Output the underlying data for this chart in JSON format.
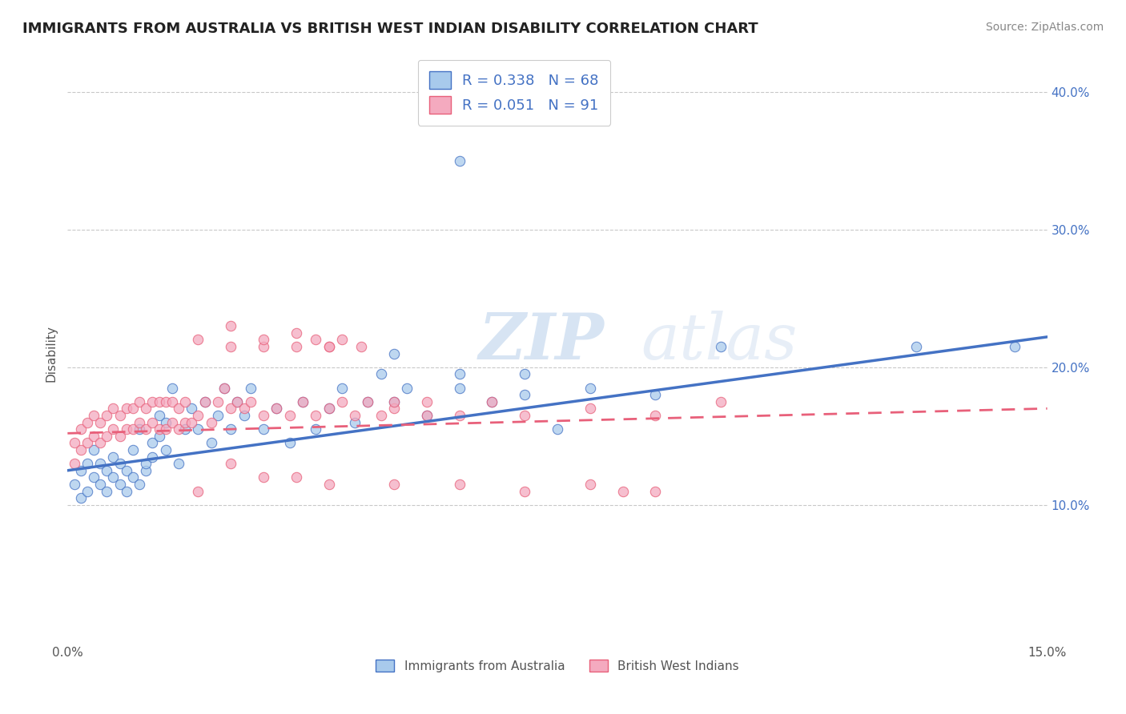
{
  "title": "IMMIGRANTS FROM AUSTRALIA VS BRITISH WEST INDIAN DISABILITY CORRELATION CHART",
  "source": "Source: ZipAtlas.com",
  "xlabel": "",
  "ylabel": "Disability",
  "xlim": [
    0.0,
    0.15
  ],
  "ylim": [
    0.0,
    0.42
  ],
  "xticks": [
    0.0,
    0.03,
    0.06,
    0.09,
    0.12,
    0.15
  ],
  "xticklabels": [
    "0.0%",
    "",
    "",
    "",
    "",
    "15.0%"
  ],
  "yticks": [
    0.1,
    0.2,
    0.3,
    0.4
  ],
  "yticklabels": [
    "10.0%",
    "20.0%",
    "30.0%",
    "40.0%"
  ],
  "blue_R": 0.338,
  "blue_N": 68,
  "pink_R": 0.051,
  "pink_N": 91,
  "blue_color": "#A8CAEC",
  "pink_color": "#F4AABF",
  "blue_line_color": "#4472C4",
  "pink_line_color": "#E8607A",
  "watermark": "ZIPatlas",
  "legend_label_blue": "Immigrants from Australia",
  "legend_label_pink": "British West Indians",
  "blue_line_x0": 0.0,
  "blue_line_y0": 0.125,
  "blue_line_x1": 0.15,
  "blue_line_y1": 0.222,
  "pink_line_x0": 0.0,
  "pink_line_y0": 0.152,
  "pink_line_x1": 0.15,
  "pink_line_y1": 0.17,
  "blue_scatter_x": [
    0.001,
    0.002,
    0.002,
    0.003,
    0.003,
    0.004,
    0.004,
    0.005,
    0.005,
    0.006,
    0.006,
    0.007,
    0.007,
    0.008,
    0.008,
    0.009,
    0.009,
    0.01,
    0.01,
    0.011,
    0.011,
    0.012,
    0.012,
    0.013,
    0.013,
    0.014,
    0.014,
    0.015,
    0.015,
    0.016,
    0.017,
    0.018,
    0.019,
    0.02,
    0.021,
    0.022,
    0.023,
    0.024,
    0.025,
    0.026,
    0.027,
    0.028,
    0.03,
    0.032,
    0.034,
    0.036,
    0.038,
    0.04,
    0.042,
    0.044,
    0.046,
    0.048,
    0.05,
    0.052,
    0.055,
    0.06,
    0.065,
    0.07,
    0.075,
    0.05,
    0.06,
    0.07,
    0.08,
    0.09,
    0.1,
    0.13,
    0.145,
    0.06
  ],
  "blue_scatter_y": [
    0.115,
    0.125,
    0.105,
    0.13,
    0.11,
    0.12,
    0.14,
    0.115,
    0.13,
    0.11,
    0.125,
    0.12,
    0.135,
    0.115,
    0.13,
    0.11,
    0.125,
    0.12,
    0.14,
    0.115,
    0.155,
    0.125,
    0.13,
    0.145,
    0.135,
    0.15,
    0.165,
    0.14,
    0.16,
    0.185,
    0.13,
    0.155,
    0.17,
    0.155,
    0.175,
    0.145,
    0.165,
    0.185,
    0.155,
    0.175,
    0.165,
    0.185,
    0.155,
    0.17,
    0.145,
    0.175,
    0.155,
    0.17,
    0.185,
    0.16,
    0.175,
    0.195,
    0.175,
    0.185,
    0.165,
    0.195,
    0.175,
    0.18,
    0.155,
    0.21,
    0.185,
    0.195,
    0.185,
    0.18,
    0.215,
    0.215,
    0.215,
    0.35
  ],
  "pink_scatter_x": [
    0.001,
    0.001,
    0.002,
    0.002,
    0.003,
    0.003,
    0.004,
    0.004,
    0.005,
    0.005,
    0.006,
    0.006,
    0.007,
    0.007,
    0.008,
    0.008,
    0.009,
    0.009,
    0.01,
    0.01,
    0.011,
    0.011,
    0.012,
    0.012,
    0.013,
    0.013,
    0.014,
    0.014,
    0.015,
    0.015,
    0.016,
    0.016,
    0.017,
    0.017,
    0.018,
    0.018,
    0.019,
    0.02,
    0.021,
    0.022,
    0.023,
    0.024,
    0.025,
    0.026,
    0.027,
    0.028,
    0.03,
    0.032,
    0.034,
    0.036,
    0.038,
    0.04,
    0.042,
    0.044,
    0.046,
    0.048,
    0.05,
    0.055,
    0.06,
    0.065,
    0.07,
    0.08,
    0.09,
    0.1,
    0.02,
    0.025,
    0.03,
    0.035,
    0.04,
    0.025,
    0.03,
    0.035,
    0.038,
    0.04,
    0.042,
    0.045,
    0.05,
    0.055,
    0.025,
    0.03,
    0.02,
    0.035,
    0.04,
    0.05,
    0.06,
    0.07,
    0.08,
    0.085,
    0.09
  ],
  "pink_scatter_y": [
    0.145,
    0.13,
    0.14,
    0.155,
    0.145,
    0.16,
    0.15,
    0.165,
    0.145,
    0.16,
    0.15,
    0.165,
    0.155,
    0.17,
    0.15,
    0.165,
    0.155,
    0.17,
    0.155,
    0.17,
    0.16,
    0.175,
    0.155,
    0.17,
    0.16,
    0.175,
    0.155,
    0.175,
    0.155,
    0.175,
    0.16,
    0.175,
    0.155,
    0.17,
    0.16,
    0.175,
    0.16,
    0.165,
    0.175,
    0.16,
    0.175,
    0.185,
    0.17,
    0.175,
    0.17,
    0.175,
    0.165,
    0.17,
    0.165,
    0.175,
    0.165,
    0.17,
    0.175,
    0.165,
    0.175,
    0.165,
    0.17,
    0.175,
    0.165,
    0.175,
    0.165,
    0.17,
    0.165,
    0.175,
    0.22,
    0.23,
    0.215,
    0.225,
    0.215,
    0.215,
    0.22,
    0.215,
    0.22,
    0.215,
    0.22,
    0.215,
    0.175,
    0.165,
    0.13,
    0.12,
    0.11,
    0.12,
    0.115,
    0.115,
    0.115,
    0.11,
    0.115,
    0.11,
    0.11
  ]
}
